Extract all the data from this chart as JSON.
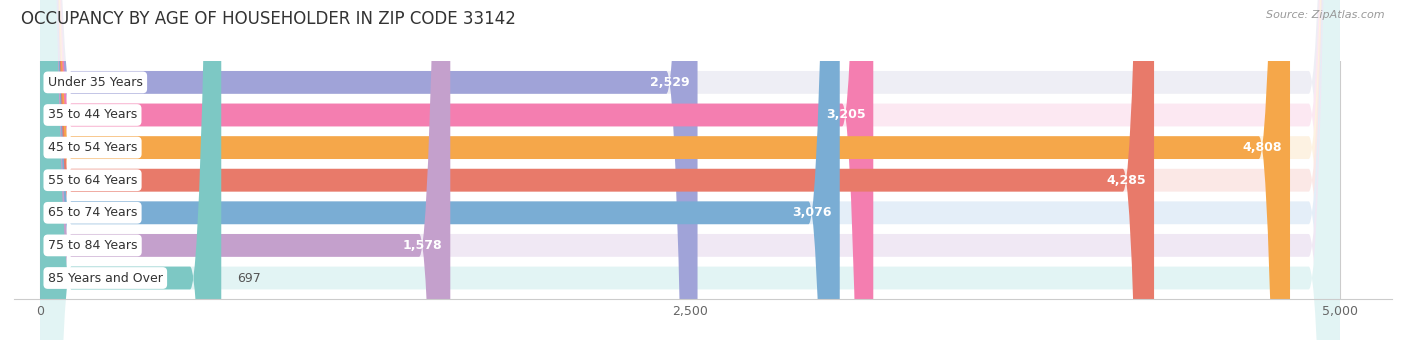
{
  "title": "OCCUPANCY BY AGE OF HOUSEHOLDER IN ZIP CODE 33142",
  "source": "Source: ZipAtlas.com",
  "categories": [
    "Under 35 Years",
    "35 to 44 Years",
    "45 to 54 Years",
    "55 to 64 Years",
    "65 to 74 Years",
    "75 to 84 Years",
    "85 Years and Over"
  ],
  "values": [
    2529,
    3205,
    4808,
    4285,
    3076,
    1578,
    697
  ],
  "bar_colors": [
    "#a0a3d8",
    "#f47eb0",
    "#f5a74a",
    "#e87a6a",
    "#7aadd4",
    "#c4a0cc",
    "#7dc8c4"
  ],
  "bar_bg_colors": [
    "#eeeef5",
    "#fce8f2",
    "#fdf2e2",
    "#fbe8e6",
    "#e4eef8",
    "#f0e8f4",
    "#e2f4f4"
  ],
  "xlim_max": 5000,
  "xticks": [
    0,
    2500,
    5000
  ],
  "background_color": "#ffffff",
  "title_fontsize": 12,
  "label_fontsize": 9,
  "value_fontsize": 9,
  "value_threshold_inside": 800
}
